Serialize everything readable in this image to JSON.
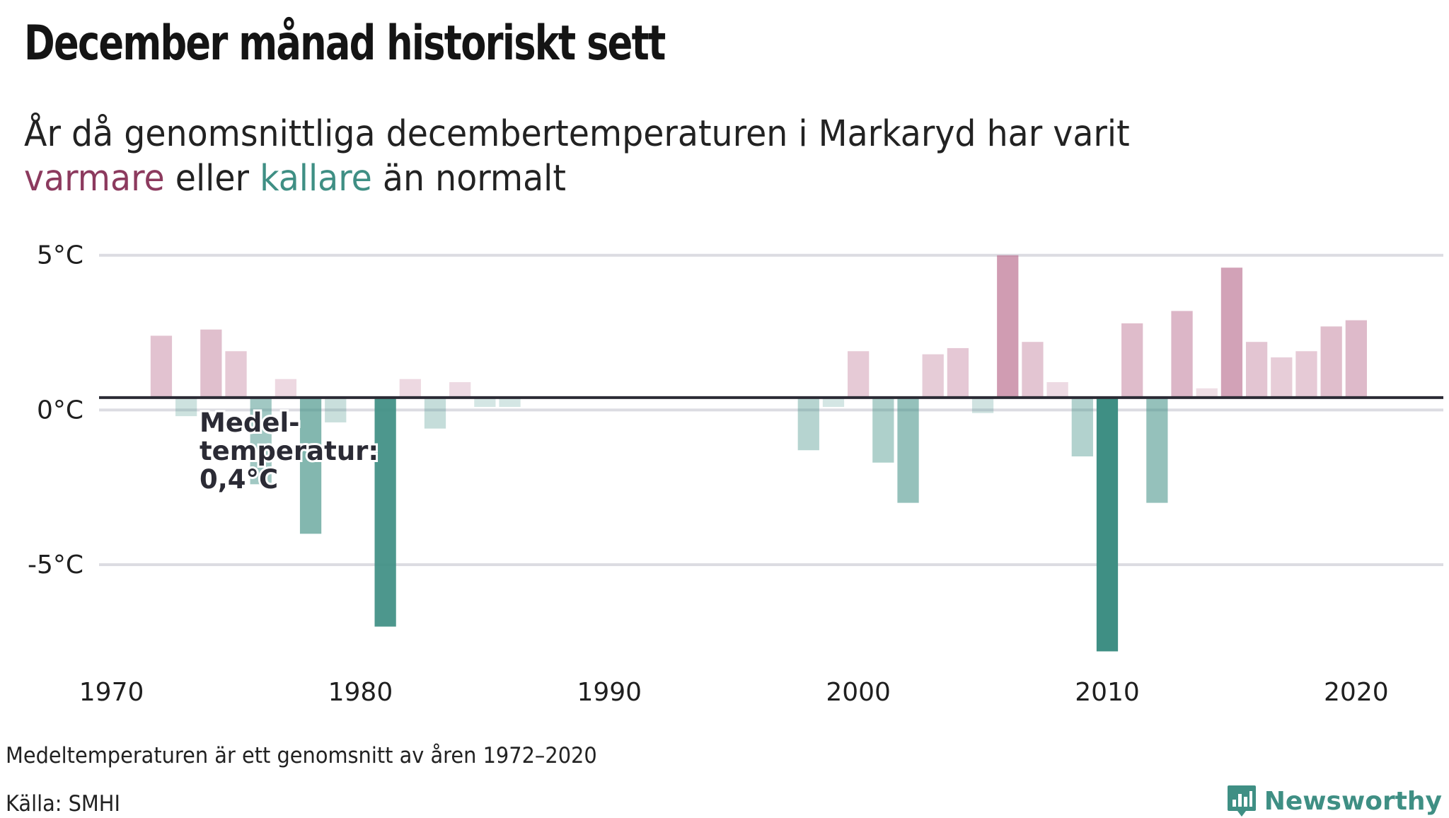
{
  "title": "December månad historiskt sett",
  "subtitle": {
    "prefix": "År då genomsnittliga decembertemperaturen i Markaryd har varit ",
    "warm_word": "varmare",
    "middle": " eller ",
    "cold_word": "kallare",
    "suffix": " än normalt"
  },
  "footnote": "Medeltemperaturen är ett genomsnitt av åren 1972–2020",
  "source": "Källa: SMHI",
  "brand": "Newsworthy",
  "colors": {
    "warm": "#b86a8c",
    "cold": "#3f8f84",
    "mean_line": "#2b2b35",
    "grid": "#dcdce2"
  },
  "chart_data": {
    "type": "bar",
    "mean": 0.4,
    "mean_label_lines": [
      "Medel-",
      "temperatur:",
      "0,4°C"
    ],
    "ylim": [
      -8.2,
      5.2
    ],
    "yticks": [
      {
        "value": 5,
        "label": "5°C"
      },
      {
        "value": 0,
        "label": "0°C"
      },
      {
        "value": -5,
        "label": "-5°C"
      }
    ],
    "xlim": [
      1969.5,
      2023.5
    ],
    "xticks": [
      1970,
      1980,
      1990,
      2000,
      2010,
      2020
    ],
    "xtick_labels": [
      "1970",
      "1980",
      "1990",
      "2000",
      "2010",
      "2020"
    ],
    "bars": [
      {
        "year": 1972,
        "value": 2.4
      },
      {
        "year": 1973,
        "value": -0.2
      },
      {
        "year": 1974,
        "value": 2.6
      },
      {
        "year": 1975,
        "value": 1.9
      },
      {
        "year": 1976,
        "value": -2.4
      },
      {
        "year": 1977,
        "value": 1.0
      },
      {
        "year": 1978,
        "value": -4.0
      },
      {
        "year": 1979,
        "value": -0.4
      },
      {
        "year": 1981,
        "value": -7.0
      },
      {
        "year": 1982,
        "value": 1.0
      },
      {
        "year": 1983,
        "value": -0.6
      },
      {
        "year": 1984,
        "value": 0.9
      },
      {
        "year": 1985,
        "value": 0.1
      },
      {
        "year": 1986,
        "value": 0.1
      },
      {
        "year": 1998,
        "value": -1.3
      },
      {
        "year": 1999,
        "value": 0.1
      },
      {
        "year": 2000,
        "value": 1.9
      },
      {
        "year": 2001,
        "value": -1.7
      },
      {
        "year": 2002,
        "value": -3.0
      },
      {
        "year": 2003,
        "value": 1.8
      },
      {
        "year": 2004,
        "value": 2.0
      },
      {
        "year": 2005,
        "value": -0.1
      },
      {
        "year": 2006,
        "value": 5.0
      },
      {
        "year": 2007,
        "value": 2.2
      },
      {
        "year": 2008,
        "value": 0.9
      },
      {
        "year": 2009,
        "value": -1.5
      },
      {
        "year": 2010,
        "value": -7.8
      },
      {
        "year": 2011,
        "value": 2.8
      },
      {
        "year": 2012,
        "value": -3.0
      },
      {
        "year": 2013,
        "value": 3.2
      },
      {
        "year": 2014,
        "value": 0.7
      },
      {
        "year": 2015,
        "value": 4.6
      },
      {
        "year": 2016,
        "value": 2.2
      },
      {
        "year": 2017,
        "value": 1.7
      },
      {
        "year": 2018,
        "value": 1.9
      },
      {
        "year": 2019,
        "value": 2.7
      },
      {
        "year": 2020,
        "value": 2.9
      }
    ]
  }
}
